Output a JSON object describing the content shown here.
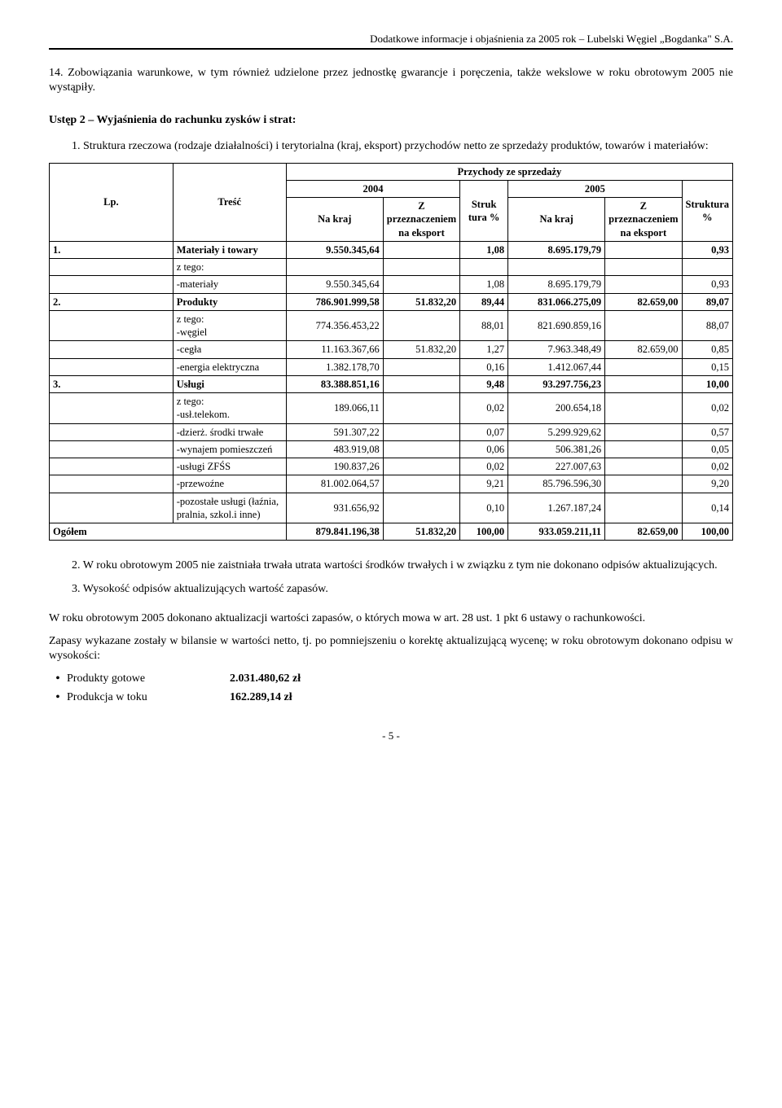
{
  "header": "Dodatkowe informacje i objaśnienia za 2005 rok – Lubelski Węgiel „Bogdanka\" S.A.",
  "p14": "14. Zobowiązania warunkowe, w tym również udzielone przez jednostkę gwarancje i poręczenia, także wekslowe w roku obrotowym 2005 nie wystąpiły.",
  "ustep2_title": "Ustęp 2 – Wyjaśnienia do rachunku zysków i strat:",
  "p1_intro": "1. Struktura rzeczowa (rodzaje działalności) i terytorialna (kraj, eksport) przychodów netto ze sprzedaży produktów, towarów i materiałów:",
  "table": {
    "super_header": "Przychody ze sprzedaży",
    "year_2004": "2004",
    "year_2005": "2005",
    "col_lp": "Lp.",
    "col_tresc": "Treść",
    "col_nakraj": "Na kraj",
    "col_przez": "Z przeznaczeniem na eksport",
    "col_struk": "Struktura %",
    "col_struk_short": "Struk\ntura\n%",
    "rows": [
      {
        "lp": "1.",
        "tresc": "Materiały i towary",
        "k1": "9.550.345,64",
        "e1": "",
        "s1": "1,08",
        "k2": "8.695.179,79",
        "e2": "",
        "s2": "0,93",
        "bold": true
      },
      {
        "lp": "",
        "tresc": "z tego:",
        "k1": "",
        "e1": "",
        "s1": "",
        "k2": "",
        "e2": "",
        "s2": ""
      },
      {
        "lp": "",
        "tresc": "-materiały",
        "k1": "9.550.345,64",
        "e1": "",
        "s1": "1,08",
        "k2": "8.695.179,79",
        "e2": "",
        "s2": "0,93"
      },
      {
        "lp": "2.",
        "tresc": "Produkty",
        "k1": "786.901.999,58",
        "e1": "51.832,20",
        "s1": "89,44",
        "k2": "831.066.275,09",
        "e2": "82.659,00",
        "s2": "89,07",
        "bold": true
      },
      {
        "lp": "",
        "tresc": "z tego:\n-węgiel",
        "k1": "774.356.453,22",
        "e1": "",
        "s1": "88,01",
        "k2": "821.690.859,16",
        "e2": "",
        "s2": "88,07"
      },
      {
        "lp": "",
        "tresc": "-cegła",
        "k1": "11.163.367,66",
        "e1": "51.832,20",
        "s1": "1,27",
        "k2": "7.963.348,49",
        "e2": "82.659,00",
        "s2": "0,85"
      },
      {
        "lp": "",
        "tresc": "-energia elektryczna",
        "k1": "1.382.178,70",
        "e1": "",
        "s1": "0,16",
        "k2": "1.412.067,44",
        "e2": "",
        "s2": "0,15"
      },
      {
        "lp": "3.",
        "tresc": "Usługi",
        "k1": "83.388.851,16",
        "e1": "",
        "s1": "9,48",
        "k2": "93.297.756,23",
        "e2": "",
        "s2": "10,00",
        "bold": true
      },
      {
        "lp": "",
        "tresc": "z tego:\n-usł.telekom.",
        "k1": "189.066,11",
        "e1": "",
        "s1": "0,02",
        "k2": "200.654,18",
        "e2": "",
        "s2": "0,02"
      },
      {
        "lp": "",
        "tresc": "-dzierż. środki trwałe",
        "k1": "591.307,22",
        "e1": "",
        "s1": "0,07",
        "k2": "5.299.929,62",
        "e2": "",
        "s2": "0,57"
      },
      {
        "lp": "",
        "tresc": "-wynajem pomieszczeń",
        "k1": "483.919,08",
        "e1": "",
        "s1": "0,06",
        "k2": "506.381,26",
        "e2": "",
        "s2": "0,05"
      },
      {
        "lp": "",
        "tresc": "-usługi ZFŚS",
        "k1": "190.837,26",
        "e1": "",
        "s1": "0,02",
        "k2": "227.007,63",
        "e2": "",
        "s2": "0,02"
      },
      {
        "lp": "",
        "tresc": "-przewoźne",
        "k1": "81.002.064,57",
        "e1": "",
        "s1": "9,21",
        "k2": "85.796.596,30",
        "e2": "",
        "s2": "9,20"
      },
      {
        "lp": "",
        "tresc": "-pozostałe usługi (łaźnia, pralnia, szkol.i inne)",
        "k1": "931.656,92",
        "e1": "",
        "s1": "0,10",
        "k2": "1.267.187,24",
        "e2": "",
        "s2": "0,14"
      },
      {
        "lp": "",
        "tresc": "Ogółem",
        "k1": "879.841.196,38",
        "e1": "51.832,20",
        "s1": "100,00",
        "k2": "933.059.211,11",
        "e2": "82.659,00",
        "s2": "100,00",
        "bold": true,
        "ogolem": true
      }
    ]
  },
  "p2": "2.  W roku obrotowym 2005 nie zaistniała trwała utrata wartości środków trwałych i w związku z tym nie dokonano odpisów aktualizujących.",
  "p3": "3.  Wysokość odpisów aktualizujących wartość zapasów.",
  "p_after": "W roku obrotowym 2005 dokonano aktualizacji wartości zapasów, o których mowa w art. 28 ust. 1 pkt 6 ustawy o rachunkowości.",
  "p_zapasy": "Zapasy wykazane zostały w bilansie w wartości netto, tj. po pomniejszeniu o korektę aktualizującą wycenę; w roku obrotowym dokonano odpisu w wysokości:",
  "bullets": [
    {
      "label": "Produkty gotowe",
      "value": "2.031.480,62 zł"
    },
    {
      "label": "Produkcja w toku",
      "value": "162.289,14 zł"
    }
  ],
  "footer": "- 5 -"
}
